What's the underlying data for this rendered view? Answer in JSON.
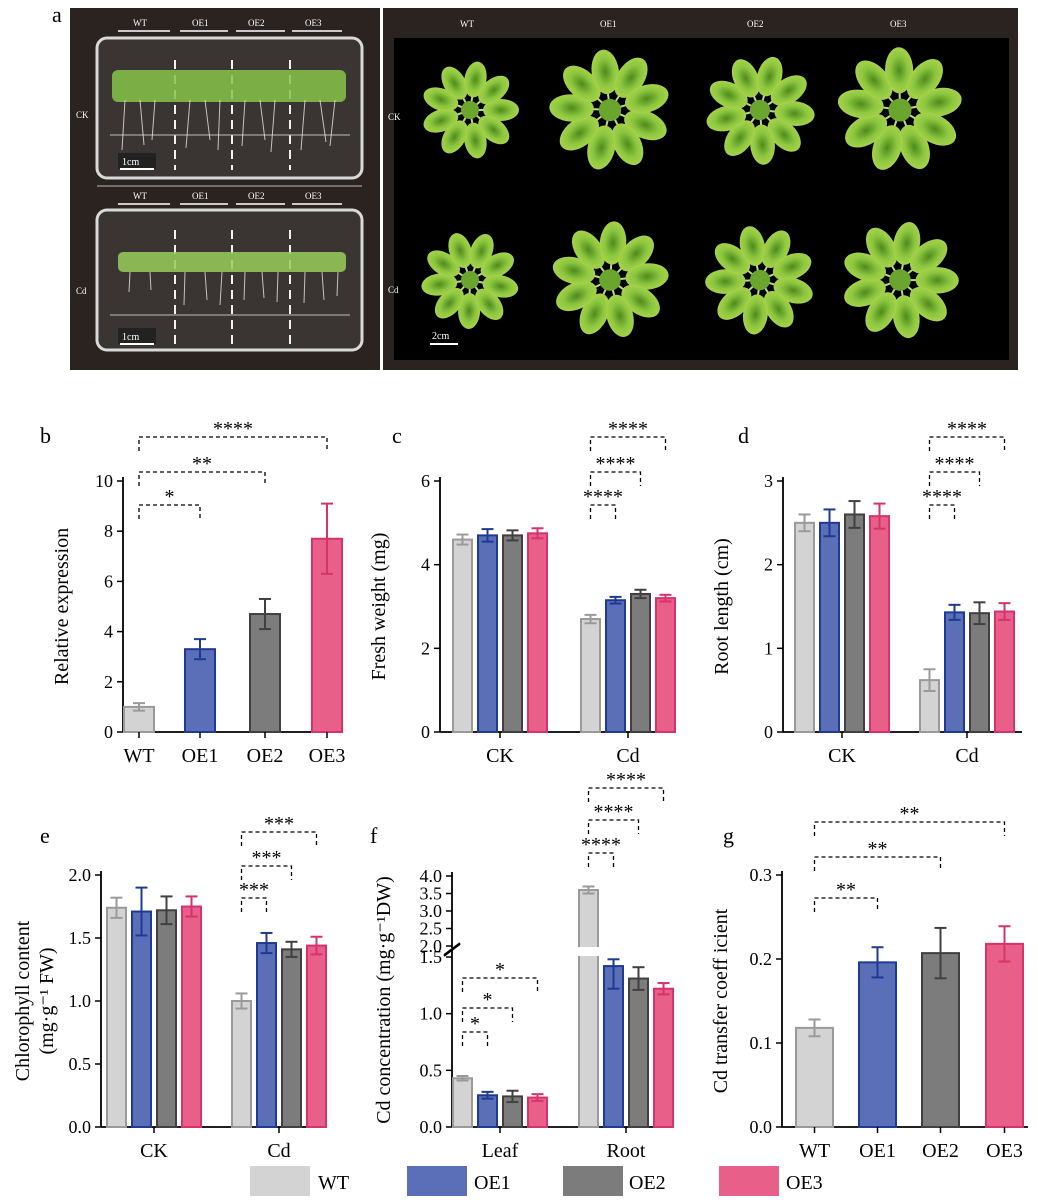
{
  "panel_labels": [
    "a",
    "b",
    "c",
    "d",
    "e",
    "f",
    "g"
  ],
  "colors": {
    "WT": "#d3d3d3",
    "OE1": "#5b6fb8",
    "OE2": "#7c7c7c",
    "OE3": "#e8608a",
    "WT_edge": "#9a9a9a",
    "OE1_edge": "#1f3a93",
    "OE2_edge": "#404040",
    "OE3_edge": "#d6336c"
  },
  "photos": {
    "plate_genotypes": [
      "WT",
      "OE1",
      "OE2",
      "OE3"
    ],
    "rosette_genotypes": [
      "WT",
      "OE1",
      "OE2",
      "OE3"
    ],
    "rows": [
      "CK",
      "Cd"
    ],
    "plate_scale": "1cm",
    "rosette_scale": "2cm"
  },
  "legend": [
    "WT",
    "OE1",
    "OE2",
    "OE3"
  ],
  "chart_data": [
    {
      "panel": "b",
      "type": "bar",
      "categories": [
        "WT",
        "OE1",
        "OE2",
        "OE3"
      ],
      "values": [
        1.0,
        3.3,
        4.7,
        7.7
      ],
      "errors": [
        0.15,
        0.4,
        0.6,
        1.4
      ],
      "ylabel": "Relative expression",
      "ylim": [
        0,
        10
      ],
      "yticks": [
        "0",
        "2",
        "4",
        "6",
        "8",
        "10"
      ],
      "significance": [
        {
          "from": "WT",
          "to": "OE1",
          "label": "*"
        },
        {
          "from": "WT",
          "to": "OE2",
          "label": "**"
        },
        {
          "from": "WT",
          "to": "OE3",
          "label": "****"
        }
      ]
    },
    {
      "panel": "c",
      "type": "bar",
      "groups": [
        "CK",
        "Cd"
      ],
      "series_names": [
        "WT",
        "OE1",
        "OE2",
        "OE3"
      ],
      "values": [
        [
          4.6,
          4.7,
          4.7,
          4.75
        ],
        [
          2.7,
          3.15,
          3.3,
          3.2
        ]
      ],
      "errors": [
        [
          0.12,
          0.15,
          0.12,
          0.12
        ],
        [
          0.1,
          0.08,
          0.1,
          0.08
        ]
      ],
      "ylabel": "Fresh weight (mg)",
      "ylim": [
        0,
        6
      ],
      "yticks": [
        "0",
        "2",
        "4",
        "6"
      ],
      "significance": [
        {
          "group": "Cd",
          "from": "WT",
          "to": "OE1",
          "label": "****"
        },
        {
          "group": "Cd",
          "from": "WT",
          "to": "OE2",
          "label": "****"
        },
        {
          "group": "Cd",
          "from": "WT",
          "to": "OE3",
          "label": "****"
        }
      ]
    },
    {
      "panel": "d",
      "type": "bar",
      "groups": [
        "CK",
        "Cd"
      ],
      "series_names": [
        "WT",
        "OE1",
        "OE2",
        "OE3"
      ],
      "values": [
        [
          2.5,
          2.5,
          2.6,
          2.58
        ],
        [
          0.62,
          1.43,
          1.42,
          1.44
        ]
      ],
      "errors": [
        [
          0.1,
          0.16,
          0.16,
          0.15
        ],
        [
          0.13,
          0.09,
          0.13,
          0.1
        ]
      ],
      "ylabel": "Root length (cm)",
      "ylim": [
        0,
        3
      ],
      "yticks": [
        "0",
        "1",
        "2",
        "3"
      ],
      "significance": [
        {
          "group": "Cd",
          "from": "WT",
          "to": "OE1",
          "label": "****"
        },
        {
          "group": "Cd",
          "from": "WT",
          "to": "OE2",
          "label": "****"
        },
        {
          "group": "Cd",
          "from": "WT",
          "to": "OE3",
          "label": "****"
        }
      ]
    },
    {
      "panel": "e",
      "type": "bar",
      "groups": [
        "CK",
        "Cd"
      ],
      "series_names": [
        "WT",
        "OE1",
        "OE2",
        "OE3"
      ],
      "values": [
        [
          1.74,
          1.71,
          1.72,
          1.75
        ],
        [
          1.0,
          1.46,
          1.41,
          1.44
        ]
      ],
      "errors": [
        [
          0.08,
          0.19,
          0.11,
          0.08
        ],
        [
          0.06,
          0.08,
          0.06,
          0.07
        ]
      ],
      "ylabel": "Chlorophyll content",
      "ylabel2": "(mg·g⁻¹ FW)",
      "ylim": [
        0,
        2.0
      ],
      "yticks": [
        "0.0",
        "0.5",
        "1.0",
        "1.5",
        "2.0"
      ],
      "significance": [
        {
          "group": "Cd",
          "from": "WT",
          "to": "OE1",
          "label": "***"
        },
        {
          "group": "Cd",
          "from": "WT",
          "to": "OE2",
          "label": "***"
        },
        {
          "group": "Cd",
          "from": "WT",
          "to": "OE3",
          "label": "***"
        }
      ]
    },
    {
      "panel": "f",
      "type": "bar",
      "groups": [
        "Leaf",
        "Root"
      ],
      "series_names": [
        "WT",
        "OE1",
        "OE2",
        "OE3"
      ],
      "values": [
        [
          0.43,
          0.28,
          0.27,
          0.26
        ],
        [
          3.6,
          1.42,
          1.31,
          1.22
        ]
      ],
      "errors": [
        [
          0.02,
          0.03,
          0.05,
          0.03
        ],
        [
          0.1,
          0.2,
          0.1,
          0.05
        ]
      ],
      "ylabel": "Cd concentration (mg·g⁻¹DW)",
      "ylim": [
        0,
        4.0
      ],
      "axis_break": [
        1.5,
        2.0
      ],
      "yticks_lower": [
        "0.0",
        "0.5",
        "1.0",
        "1.5"
      ],
      "yticks_upper": [
        "2.0",
        "2.5",
        "3.0",
        "3.5",
        "4.0"
      ],
      "significance": [
        {
          "group": "Leaf",
          "from": "WT",
          "to": "OE1",
          "label": "*"
        },
        {
          "group": "Leaf",
          "from": "WT",
          "to": "OE2",
          "label": "*"
        },
        {
          "group": "Leaf",
          "from": "WT",
          "to": "OE3",
          "label": "*"
        },
        {
          "group": "Root",
          "from": "WT",
          "to": "OE1",
          "label": "****"
        },
        {
          "group": "Root",
          "from": "WT",
          "to": "OE2",
          "label": "****"
        },
        {
          "group": "Root",
          "from": "WT",
          "to": "OE3",
          "label": "****"
        }
      ]
    },
    {
      "panel": "g",
      "type": "bar",
      "categories": [
        "WT",
        "OE1",
        "OE2",
        "OE3"
      ],
      "values": [
        0.118,
        0.196,
        0.207,
        0.218
      ],
      "errors": [
        0.01,
        0.018,
        0.03,
        0.021
      ],
      "ylabel": "Cd transfer coeff icient",
      "ylim": [
        0,
        0.3
      ],
      "yticks": [
        "0.0",
        "0.1",
        "0.2",
        "0.3"
      ],
      "significance": [
        {
          "from": "WT",
          "to": "OE1",
          "label": "**"
        },
        {
          "from": "WT",
          "to": "OE2",
          "label": "**"
        },
        {
          "from": "WT",
          "to": "OE3",
          "label": "**"
        }
      ]
    }
  ]
}
